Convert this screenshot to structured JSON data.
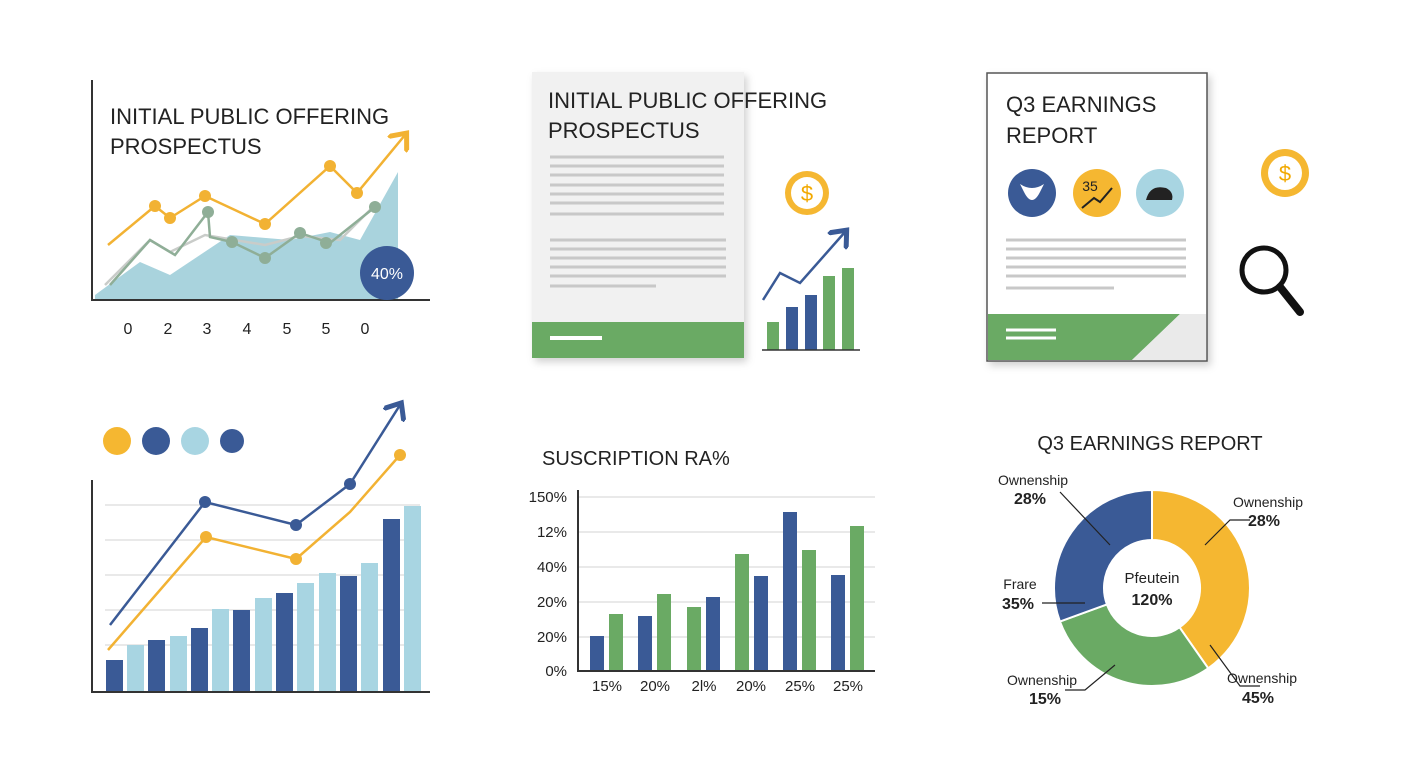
{
  "ipo_chart": {
    "title_lines": [
      "INITIAL PUBLIC OFFERING",
      "PROSPECTUS"
    ],
    "x_labels": [
      "0",
      "2",
      "3",
      "4",
      "5",
      "5",
      "0"
    ],
    "badge": "40%"
  },
  "ipo_document": {
    "title_lines": [
      "INITIAL PUBLIC OFFERING",
      "PROSPECTUS"
    ],
    "coin": "$"
  },
  "earnings_document": {
    "title_lines": [
      "Q3 EARNINGS",
      "REPORT"
    ],
    "icon_label": "35",
    "coin": "$"
  },
  "subscription_chart": {
    "title": "SUSCRIPTION RA%",
    "y_labels": [
      "150%",
      "12%",
      "40%",
      "20%",
      "20%",
      "0%"
    ],
    "x_labels": [
      "15%",
      "20%",
      "2l%",
      "20%",
      "25%",
      "25%"
    ]
  },
  "earnings_donut": {
    "title": "Q3 EARNINGS REPORT",
    "center": [
      "Pfeutein",
      "120%"
    ],
    "labels": [
      {
        "name": "Ownenship",
        "value": "28%"
      },
      {
        "name": "Ownenship",
        "value": "28%"
      },
      {
        "name": "Frare",
        "value": "35%"
      },
      {
        "name": "Ownenship",
        "value": "15%"
      },
      {
        "name": "Ownenship",
        "value": "45%"
      }
    ]
  }
}
